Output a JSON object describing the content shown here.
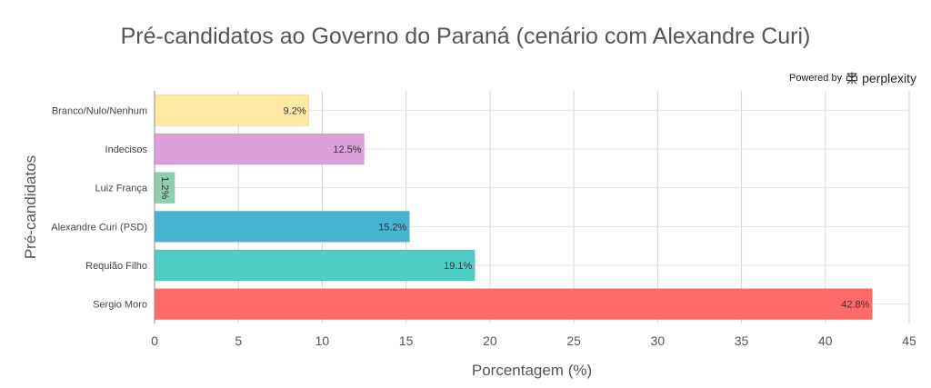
{
  "header": {
    "title": "Pré-candidatos ao Governo do Paraná (cenário com Alexandre Curi)",
    "powered_by": "Powered by",
    "brand": "perplexity"
  },
  "chart_data": {
    "type": "bar",
    "orientation": "horizontal",
    "title": "Pré-candidatos ao Governo do Paraná (cenário com Alexandre Curi)",
    "xlabel": "Porcentagem (%)",
    "ylabel": "Pré-candidatos",
    "categories": [
      "Branco/Nulo/Nenhum",
      "Indecisos",
      "Luiz França",
      "Alexandre Curi (PSD)",
      "Requião Filho",
      "Sergio Moro"
    ],
    "values": [
      9.2,
      12.5,
      1.2,
      15.2,
      19.1,
      42.8
    ],
    "data_labels": [
      "9.2%",
      "12.5%",
      "1.2%",
      "15.2%",
      "19.1%",
      "42.8%"
    ],
    "colors": [
      "#FFE8A3",
      "#DDA0DD",
      "#8FCFAF",
      "#45B4D3",
      "#4ECDC4",
      "#FF6B6B"
    ],
    "xlim": [
      0,
      45
    ],
    "xticks": [
      0,
      5,
      10,
      15,
      20,
      25,
      30,
      35,
      40,
      45
    ],
    "grid": true,
    "legend": "none"
  }
}
